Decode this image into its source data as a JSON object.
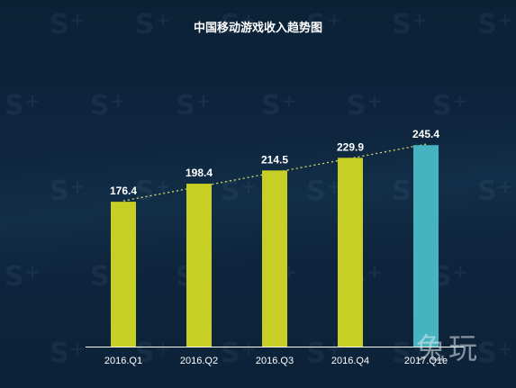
{
  "chart_data": {
    "type": "bar",
    "title": "中国移动游戏收入趋势图",
    "categories": [
      "2016.Q1",
      "2016.Q2",
      "2016.Q3",
      "2016.Q4",
      "2017.Q1e"
    ],
    "values": [
      176.4,
      198.4,
      214.5,
      229.9,
      245.4
    ],
    "ylim": [
      0,
      250
    ],
    "grid": false,
    "trendline": true,
    "colors": {
      "actual": "#c8cf24",
      "estimate": "#45b4c0",
      "trendline": "#d7dc6a"
    },
    "estimate_categories": [
      "2017.Q1e"
    ]
  },
  "logo_text": "兔玩"
}
